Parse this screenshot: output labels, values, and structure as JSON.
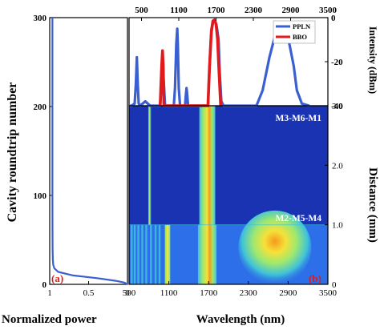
{
  "chart_data": [
    {
      "panel": "a",
      "type": "line",
      "xlabel": "Normalized power",
      "ylabel": "Cavity roundtrip number",
      "xlim": [
        0,
        1
      ],
      "ylim": [
        0,
        300
      ],
      "xticks": [
        "1",
        "0.5",
        "0"
      ],
      "xtick_values": [
        0,
        0.5,
        1
      ],
      "yticks": [
        "0",
        "100",
        "200",
        "300"
      ],
      "ytick_values": [
        0,
        100,
        200,
        300
      ],
      "panel_label": "(a)",
      "series_color": "#3a5fd0",
      "series": [
        {
          "x": [
            0.035,
            0.035,
            0.035,
            0.036,
            0.037,
            0.04,
            0.045,
            0.06,
            0.11,
            0.3,
            0.6,
            0.85,
            0.96,
            1.0
          ],
          "y": [
            300,
            200,
            100,
            60,
            40,
            28,
            22,
            18,
            14,
            10,
            7,
            4,
            2,
            0
          ]
        }
      ]
    },
    {
      "panel": "b-top",
      "type": "line",
      "ylabel": "Intensity (dBm)",
      "xlim": [
        300,
        3500
      ],
      "ylim": [
        -40,
        0
      ],
      "xticks": [
        "500",
        "1100",
        "1700",
        "2300",
        "2900",
        "3500"
      ],
      "xtick_values": [
        500,
        1100,
        1700,
        2300,
        2900,
        3500
      ],
      "yticks": [
        "0",
        "-20",
        "-40"
      ],
      "ytick_values": [
        0,
        -20,
        -40
      ],
      "legend": "top-right",
      "series": [
        {
          "name": "PPLN",
          "color": "#3a5fd0",
          "x": [
            300,
            340,
            390,
            410,
            425,
            440,
            455,
            480,
            560,
            640,
            800,
            825,
            840,
            860,
            880,
            1020,
            1040,
            1060,
            1075,
            1085,
            1100,
            1120,
            1200,
            1215,
            1225,
            1235,
            1250,
            1400,
            1570,
            1590,
            1620,
            1650,
            1680,
            1710,
            1740,
            1760,
            1785,
            1820,
            2100,
            2350,
            2450,
            2560,
            2660,
            2720,
            2760,
            2810,
            2880,
            2950,
            3000,
            3080,
            3200
          ],
          "y": [
            -40,
            -40,
            -39,
            -30,
            -18,
            -30,
            -39,
            -40,
            -38,
            -40,
            -40,
            -30,
            -21,
            -30,
            -40,
            -40,
            -32,
            -12,
            -5,
            -12,
            -32,
            -40,
            -40,
            -35,
            -32,
            -35,
            -40,
            -40,
            -40,
            -25,
            -8,
            -2,
            -1,
            -4,
            -10,
            -25,
            -38,
            -40,
            -40,
            -40,
            -33,
            -18,
            -7,
            -4,
            -3,
            -5,
            -12,
            -22,
            -33,
            -39,
            -40
          ]
        },
        {
          "name": "BBO",
          "color": "#e31a1c",
          "x": [
            800,
            825,
            838,
            850,
            860,
            1570,
            1595,
            1625,
            1650,
            1675,
            1700,
            1725,
            1750,
            1775
          ],
          "y": [
            -40,
            -22,
            -15,
            -22,
            -40,
            -40,
            -22,
            -6,
            -1.5,
            -1,
            -3,
            -10,
            -26,
            -40
          ]
        }
      ],
      "legend_labels": [
        "PPLN",
        "BBO"
      ]
    },
    {
      "panel": "b-map",
      "type": "heatmap",
      "xlabel": "Wavelength (nm)",
      "ylabel": "Distance (mm)",
      "xlim": [
        500,
        3500
      ],
      "ylim": [
        0,
        3.0
      ],
      "xticks": [
        "500",
        "1100",
        "1700",
        "2300",
        "2900",
        "3500"
      ],
      "xtick_values": [
        500,
        1100,
        1700,
        2300,
        2900,
        3500
      ],
      "yticks": [
        "0",
        "1.0",
        "2.0",
        "3.0"
      ],
      "ytick_values": [
        0,
        1,
        2,
        3
      ],
      "annotations": [
        "M3-M6-M1",
        "M2-M5-M4"
      ],
      "panel_label": "(b)",
      "colormap": [
        "#1a33b3",
        "#2d6fe8",
        "#3fc2d9",
        "#9de870",
        "#f5e23a",
        "#f59a1e"
      ]
    }
  ]
}
